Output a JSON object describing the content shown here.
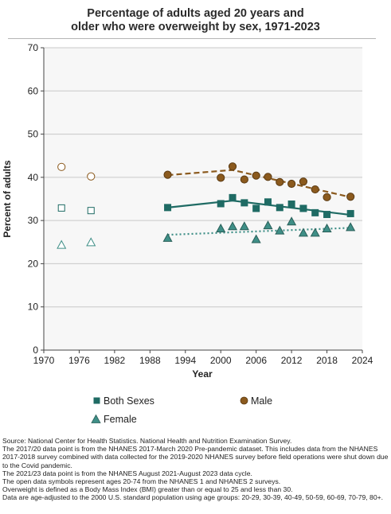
{
  "chart_data": {
    "type": "line",
    "title_lines": [
      "Percentage of adults aged 20 years and",
      "older who were overweight by sex, 1971-2023"
    ],
    "xlabel": "Year",
    "ylabel": "Percent of adults",
    "xlim": [
      1970,
      2024
    ],
    "ylim": [
      0,
      70
    ],
    "xticks": [
      1970,
      1976,
      1982,
      1988,
      1994,
      2000,
      2006,
      2012,
      2018,
      2024
    ],
    "yticks": [
      0,
      10,
      20,
      30,
      40,
      50,
      60,
      70
    ],
    "grid": "horizontal",
    "legend_position": "bottom",
    "series": [
      {
        "name": "Both Sexes",
        "marker": "square",
        "color": "#1f6b64",
        "trend_style": "solid",
        "open_points": [
          {
            "x": 1973,
            "y": 32.9
          },
          {
            "x": 1978,
            "y": 32.3
          }
        ],
        "points": [
          {
            "x": 1991,
            "y": 33.0
          },
          {
            "x": 2000,
            "y": 33.9
          },
          {
            "x": 2002,
            "y": 35.3
          },
          {
            "x": 2004,
            "y": 34.1
          },
          {
            "x": 2006,
            "y": 32.8
          },
          {
            "x": 2008,
            "y": 34.3
          },
          {
            "x": 2010,
            "y": 33.0
          },
          {
            "x": 2012,
            "y": 33.8
          },
          {
            "x": 2014,
            "y": 32.8
          },
          {
            "x": 2016,
            "y": 31.8
          },
          {
            "x": 2018,
            "y": 31.4
          },
          {
            "x": 2022,
            "y": 31.6
          }
        ],
        "trend": [
          {
            "x": 1991,
            "y": 33.0
          },
          {
            "x": 2002,
            "y": 34.6
          },
          {
            "x": 2022,
            "y": 31.3
          }
        ]
      },
      {
        "name": "Male",
        "marker": "circle",
        "color": "#8b5a1e",
        "trend_style": "dashed",
        "open_points": [
          {
            "x": 1973,
            "y": 42.4
          },
          {
            "x": 1978,
            "y": 40.2
          }
        ],
        "points": [
          {
            "x": 1991,
            "y": 40.6
          },
          {
            "x": 2000,
            "y": 39.9
          },
          {
            "x": 2002,
            "y": 42.5
          },
          {
            "x": 2004,
            "y": 39.5
          },
          {
            "x": 2006,
            "y": 40.4
          },
          {
            "x": 2008,
            "y": 40.1
          },
          {
            "x": 2010,
            "y": 38.9
          },
          {
            "x": 2012,
            "y": 38.5
          },
          {
            "x": 2014,
            "y": 39.0
          },
          {
            "x": 2016,
            "y": 37.2
          },
          {
            "x": 2018,
            "y": 35.4
          },
          {
            "x": 2022,
            "y": 35.5
          }
        ],
        "trend": [
          {
            "x": 1991,
            "y": 40.5
          },
          {
            "x": 2002,
            "y": 41.7
          },
          {
            "x": 2022,
            "y": 35.4
          }
        ]
      },
      {
        "name": "Female",
        "marker": "triangle",
        "color": "#3f8f87",
        "trend_style": "dotted",
        "open_points": [
          {
            "x": 1973,
            "y": 24.3
          },
          {
            "x": 1978,
            "y": 24.9
          }
        ],
        "points": [
          {
            "x": 1991,
            "y": 25.9
          },
          {
            "x": 2000,
            "y": 28.1
          },
          {
            "x": 2002,
            "y": 28.6
          },
          {
            "x": 2004,
            "y": 28.6
          },
          {
            "x": 2006,
            "y": 25.6
          },
          {
            "x": 2008,
            "y": 28.8
          },
          {
            "x": 2010,
            "y": 27.6
          },
          {
            "x": 2012,
            "y": 29.7
          },
          {
            "x": 2014,
            "y": 27.1
          },
          {
            "x": 2016,
            "y": 27.1
          },
          {
            "x": 2018,
            "y": 28.1
          },
          {
            "x": 2022,
            "y": 28.4
          }
        ],
        "trend": [
          {
            "x": 1991,
            "y": 26.7
          },
          {
            "x": 2022,
            "y": 28.3
          }
        ]
      }
    ]
  },
  "notes": [
    "Source: National Center for Health Statistics. National Health and Nutrition Examination Survey.",
    "The 2017/20 data point is from the NHANES 2017-March 2020 Pre-pandemic dataset. This includes data from the NHANES 2017-2018 survey combined with data collected for the 2019-2020 NHANES survey before field operations were shut down due to the Covid pandemic.",
    "The 2021/23 data point is from the NHANES August 2021-August 2023 data cycle.",
    "The open data symbols represent ages 20-74 from the NHANES 1 and NHANES 2 surveys.",
    "Overweight is defined as a Body Mass Index (BMI) greater than or equal to 25 and less than 30.",
    "Data are age-adjusted to the 2000 U.S. standard population using age groups: 20-29, 30-39, 40-49, 50-59, 60-69, 70-79, 80+."
  ]
}
